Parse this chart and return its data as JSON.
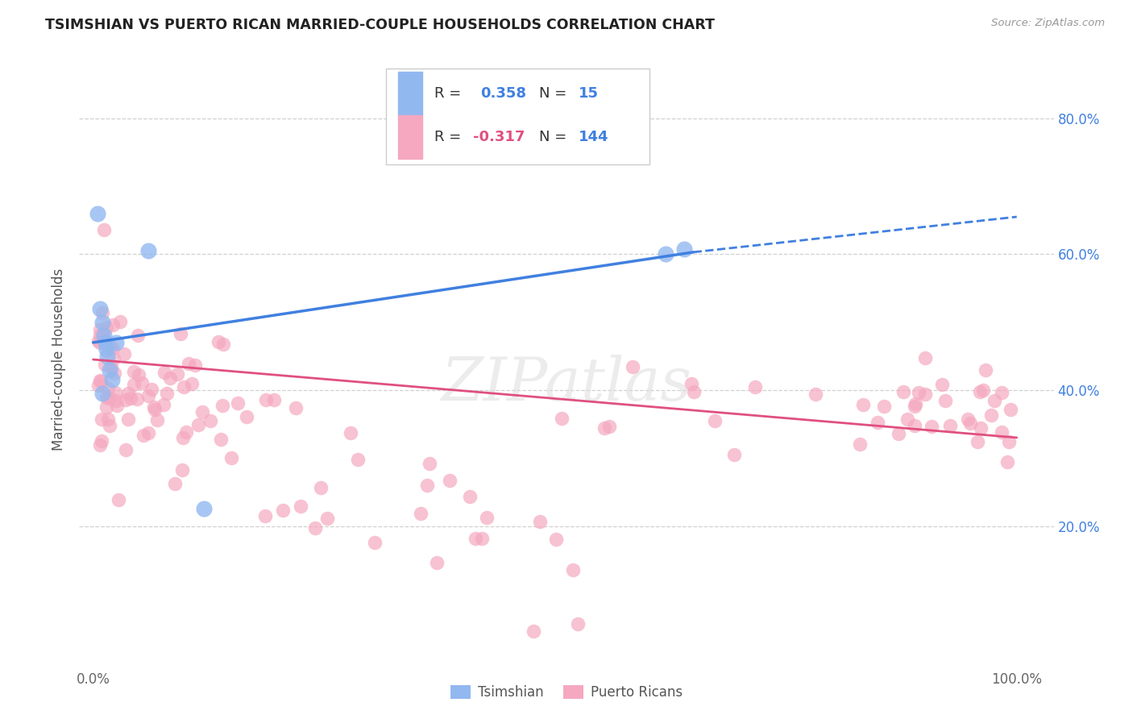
{
  "title": "TSIMSHIAN VS PUERTO RICAN MARRIED-COUPLE HOUSEHOLDS CORRELATION CHART",
  "source": "Source: ZipAtlas.com",
  "ylabel": "Married-couple Households",
  "watermark": "ZIPatlas",
  "tsimshian_color": "#92b8f0",
  "puerto_color": "#f5a8c0",
  "trend_blue": "#4080e0",
  "trend_pink": "#e05080",
  "background": "#ffffff",
  "grid_color": "#d0d0d0",
  "label_color": "#4080e0",
  "title_color": "#222222",
  "source_color": "#999999",
  "ylabel_color": "#555555",
  "tsimshian_x": [
    0.005,
    0.007,
    0.01,
    0.012,
    0.013,
    0.014,
    0.015,
    0.018,
    0.02,
    0.025,
    0.06,
    0.12,
    0.62,
    0.64,
    0.01
  ],
  "tsimshian_y": [
    0.66,
    0.52,
    0.5,
    0.48,
    0.47,
    0.46,
    0.45,
    0.43,
    0.415,
    0.47,
    0.605,
    0.225,
    0.6,
    0.607,
    0.395
  ],
  "trend_ts_x0": 0.0,
  "trend_ts_y0": 0.47,
  "trend_ts_x1": 0.65,
  "trend_ts_y1": 0.603,
  "trend_ts_dash_x0": 0.65,
  "trend_ts_dash_y0": 0.603,
  "trend_ts_dash_x1": 1.0,
  "trend_ts_dash_y1": 0.655,
  "trend_pr_x0": 0.0,
  "trend_pr_y0": 0.445,
  "trend_pr_x1": 1.0,
  "trend_pr_y1": 0.33,
  "xmin": 0.0,
  "xmax": 1.0,
  "ymin": 0.0,
  "ymax": 0.9,
  "yticks": [
    0.2,
    0.4,
    0.6,
    0.8
  ],
  "ytick_labels": [
    "20.0%",
    "40.0%",
    "60.0%",
    "80.0%"
  ],
  "xticks": [
    0.0,
    1.0
  ],
  "xtick_labels": [
    "0.0%",
    "100.0%"
  ],
  "legend_r1": "R =",
  "legend_v1": "0.358",
  "legend_n1_label": "N =",
  "legend_n1": "15",
  "legend_r2": "R =",
  "legend_v2": "-0.317",
  "legend_n2_label": "N =",
  "legend_n2": "144",
  "bottom_label1": "Tsimshian",
  "bottom_label2": "Puerto Ricans"
}
